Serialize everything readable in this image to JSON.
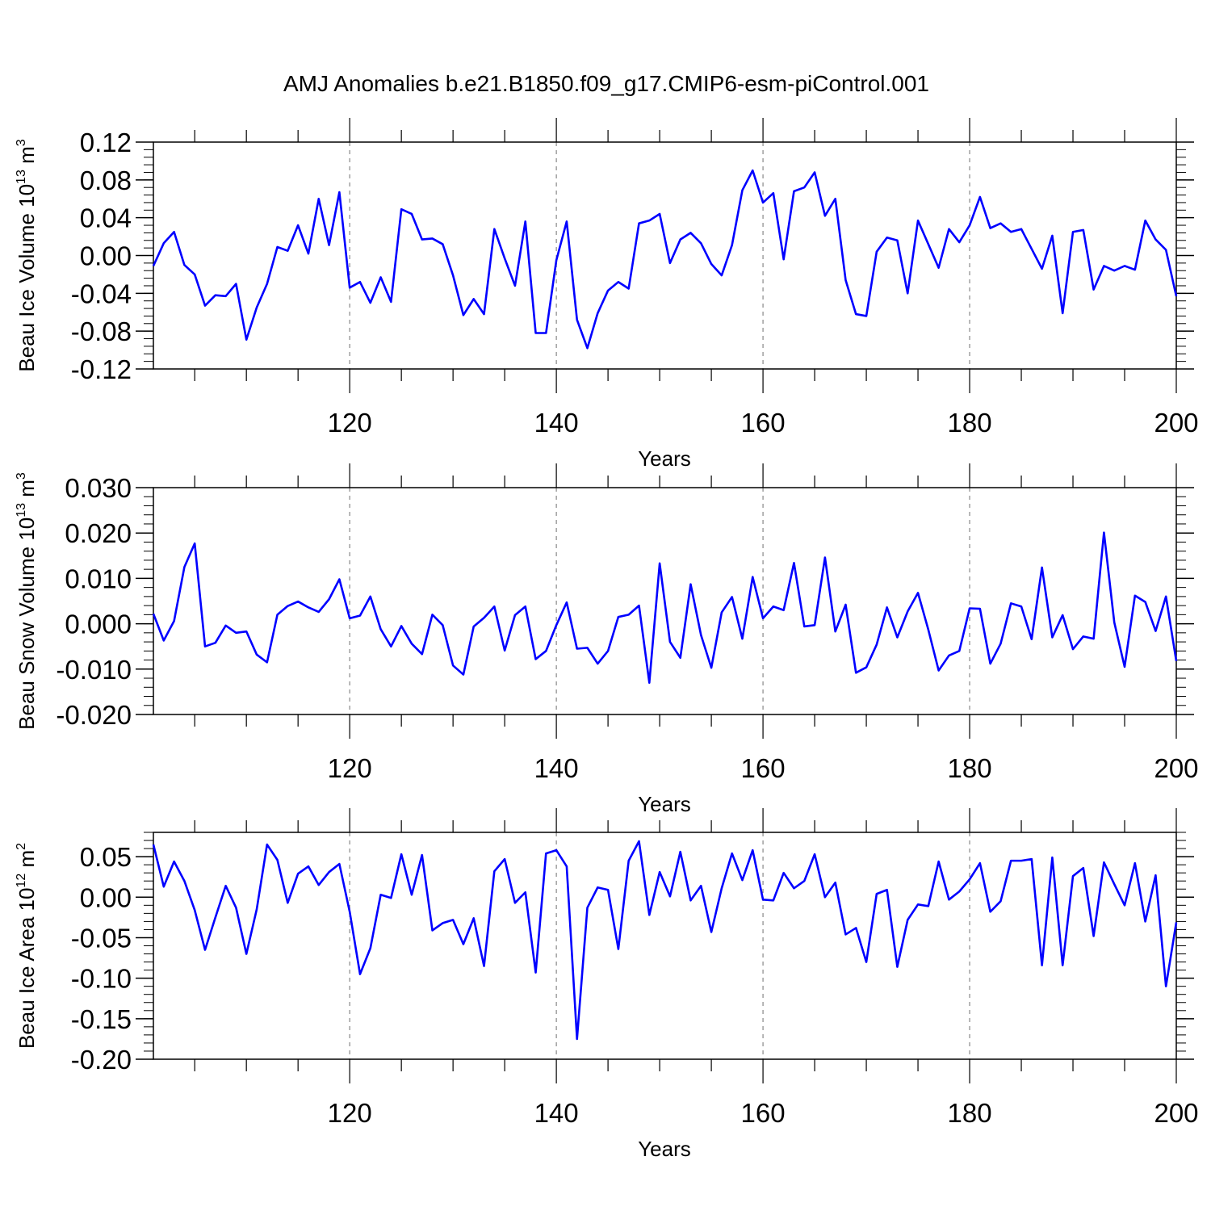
{
  "title": "AMJ Anomalies b.e21.B1850.f09_g17.CMIP6-esm-piControl.001",
  "colors": {
    "line": "#0000ff",
    "axis": "#000000",
    "grid": "#888888"
  },
  "chart_data": [
    {
      "type": "line",
      "ylabel": {
        "main": "Beau Ice Volume 10",
        "sup": "13",
        "unit": " m",
        "unit_sup": "3"
      },
      "xlabel": "Years",
      "xlim": [
        101,
        200
      ],
      "ylim": [
        -0.12,
        0.12
      ],
      "yticks": [
        -0.12,
        -0.08,
        -0.04,
        0.0,
        0.04,
        0.08,
        0.12
      ],
      "ytick_labels": [
        "-0.12",
        "-0.08",
        "-0.04",
        "0.00",
        "0.04",
        "0.08",
        "0.12"
      ],
      "xticks": [
        120,
        140,
        160,
        180,
        200
      ],
      "xtick_labels": [
        "120",
        "140",
        "160",
        "180",
        "200"
      ],
      "series": [
        {
          "name": "Beau Ice Volume",
          "x_start": 101,
          "values": [
            -0.011,
            0.013,
            0.025,
            -0.01,
            -0.02,
            -0.053,
            -0.042,
            -0.043,
            -0.03,
            -0.089,
            -0.055,
            -0.03,
            0.009,
            0.005,
            0.032,
            0.002,
            0.06,
            0.011,
            0.067,
            -0.034,
            -0.028,
            -0.05,
            -0.023,
            -0.049,
            0.049,
            0.044,
            0.017,
            0.018,
            0.012,
            -0.021,
            -0.063,
            -0.046,
            -0.062,
            0.028,
            -0.003,
            -0.032,
            0.036,
            -0.082,
            -0.082,
            -0.005,
            0.036,
            -0.068,
            -0.098,
            -0.061,
            -0.037,
            -0.028,
            -0.035,
            0.034,
            0.037,
            0.044,
            -0.008,
            0.017,
            0.024,
            0.013,
            -0.009,
            -0.021,
            0.011,
            0.069,
            0.09,
            0.056,
            0.066,
            -0.004,
            0.068,
            0.072,
            0.088,
            0.042,
            0.06,
            -0.026,
            -0.062,
            -0.064,
            0.004,
            0.019,
            0.016,
            -0.04,
            0.037,
            0.012,
            -0.013,
            0.028,
            0.014,
            0.032,
            0.062,
            0.029,
            0.034,
            0.025,
            0.028,
            0.007,
            -0.014,
            0.021,
            -0.061,
            0.025,
            0.027,
            -0.036,
            -0.011,
            -0.016,
            -0.011,
            -0.015,
            0.037,
            0.017,
            0.006,
            -0.043
          ]
        }
      ]
    },
    {
      "type": "line",
      "ylabel": {
        "main": "Beau Snow Volume 10",
        "sup": "13",
        "unit": " m",
        "unit_sup": "3"
      },
      "xlabel": "Years",
      "xlim": [
        101,
        200
      ],
      "ylim": [
        -0.02,
        0.03
      ],
      "yticks": [
        -0.02,
        -0.01,
        0.0,
        0.01,
        0.02,
        0.03
      ],
      "ytick_labels": [
        "-0.020",
        "-0.010",
        "0.000",
        "0.010",
        "0.020",
        "0.030"
      ],
      "xticks": [
        120,
        140,
        160,
        180,
        200
      ],
      "xtick_labels": [
        "120",
        "140",
        "160",
        "180",
        "200"
      ],
      "series": [
        {
          "name": "Beau Snow Volume",
          "x_start": 101,
          "values": [
            0.0022,
            -0.0037,
            0.0006,
            0.0125,
            0.0177,
            -0.005,
            -0.0042,
            -0.0004,
            -0.002,
            -0.0017,
            -0.0068,
            -0.0085,
            0.002,
            0.0039,
            0.0049,
            0.0036,
            0.0026,
            0.0054,
            0.0098,
            0.0012,
            0.0018,
            0.006,
            -0.0012,
            -0.005,
            -0.0005,
            -0.0044,
            -0.0067,
            0.002,
            -0.0003,
            -0.0092,
            -0.0112,
            -0.0006,
            0.0013,
            0.0038,
            -0.0059,
            0.0019,
            0.0038,
            -0.0078,
            -0.006,
            -0.0003,
            0.0047,
            -0.0055,
            -0.0053,
            -0.0088,
            -0.006,
            0.0015,
            0.002,
            0.004,
            -0.013,
            0.0133,
            -0.004,
            -0.0075,
            0.0087,
            -0.0025,
            -0.0097,
            0.0025,
            0.0059,
            -0.0033,
            0.0103,
            0.0012,
            0.0038,
            0.003,
            0.0134,
            -0.0006,
            -0.0003,
            0.0146,
            -0.0017,
            0.0042,
            -0.0108,
            -0.0096,
            -0.0046,
            0.0036,
            -0.003,
            0.0027,
            0.0068,
            -0.0013,
            -0.0103,
            -0.007,
            -0.006,
            0.0034,
            0.0033,
            -0.0088,
            -0.0044,
            0.0045,
            0.0038,
            -0.0034,
            0.0124,
            -0.003,
            0.0019,
            -0.0056,
            -0.0028,
            -0.0033,
            0.0201,
            0.0003,
            -0.0095,
            0.0062,
            0.0048,
            -0.0016,
            0.006,
            -0.0082
          ]
        }
      ]
    },
    {
      "type": "line",
      "ylabel": {
        "main": "Beau Ice Area 10",
        "sup": "12",
        "unit": " m",
        "unit_sup": "2"
      },
      "xlabel": "Years",
      "xlim": [
        101,
        200
      ],
      "ylim": [
        -0.2,
        0.08
      ],
      "yticks": [
        -0.2,
        -0.15,
        -0.1,
        -0.05,
        0.0,
        0.05
      ],
      "ytick_labels": [
        "-0.20",
        "-0.15",
        "-0.10",
        "-0.05",
        "0.00",
        "0.05"
      ],
      "xticks": [
        120,
        140,
        160,
        180,
        200
      ],
      "xtick_labels": [
        "120",
        "140",
        "160",
        "180",
        "200"
      ],
      "series": [
        {
          "name": "Beau Ice Area",
          "x_start": 101,
          "values": [
            0.065,
            0.013,
            0.044,
            0.02,
            -0.016,
            -0.065,
            -0.025,
            0.014,
            -0.013,
            -0.07,
            -0.015,
            0.065,
            0.046,
            -0.007,
            0.029,
            0.038,
            0.015,
            0.031,
            0.041,
            -0.018,
            -0.095,
            -0.063,
            0.003,
            -0.001,
            0.053,
            0.003,
            0.052,
            -0.041,
            -0.032,
            -0.028,
            -0.058,
            -0.026,
            -0.085,
            0.032,
            0.047,
            -0.007,
            0.006,
            -0.093,
            0.054,
            0.058,
            0.038,
            -0.175,
            -0.013,
            0.012,
            0.009,
            -0.064,
            0.045,
            0.069,
            -0.022,
            0.031,
            0.001,
            0.056,
            -0.004,
            0.014,
            -0.043,
            0.011,
            0.054,
            0.021,
            0.058,
            -0.003,
            -0.004,
            0.03,
            0.011,
            0.02,
            0.053,
            0.0,
            0.018,
            -0.046,
            -0.038,
            -0.08,
            0.004,
            0.009,
            -0.086,
            -0.028,
            -0.009,
            -0.011,
            0.044,
            -0.003,
            0.007,
            0.022,
            0.042,
            -0.018,
            -0.005,
            0.045,
            0.045,
            0.047,
            -0.084,
            0.049,
            -0.084,
            0.026,
            0.036,
            -0.048,
            0.043,
            0.016,
            -0.01,
            0.042,
            -0.03,
            0.027,
            -0.11,
            -0.031
          ]
        }
      ]
    }
  ]
}
